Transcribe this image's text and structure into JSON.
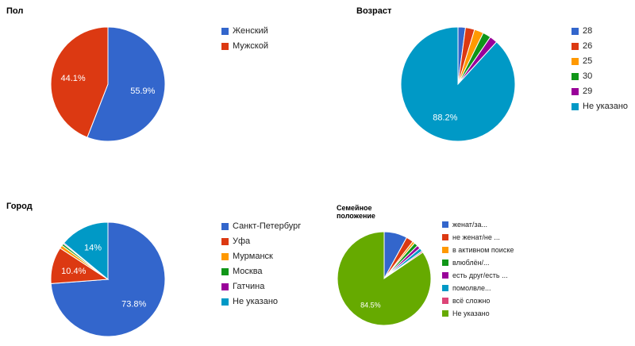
{
  "chart_data": [
    {
      "type": "pie",
      "title": "Пол",
      "series": [
        {
          "name": "Женский",
          "value": 55.9,
          "color": "#3366cc"
        },
        {
          "name": "Мужской",
          "value": 44.1,
          "color": "#dc3912"
        }
      ],
      "slice_labels": [
        "55.9%",
        "44.1%"
      ],
      "legend_position": "right"
    },
    {
      "type": "pie",
      "title": "Возраст",
      "series": [
        {
          "name": "28",
          "value": 2.1,
          "color": "#3366cc"
        },
        {
          "name": "26",
          "value": 2.6,
          "color": "#dc3912"
        },
        {
          "name": "25",
          "value": 2.6,
          "color": "#ff9900"
        },
        {
          "name": "30",
          "value": 2.3,
          "color": "#109618"
        },
        {
          "name": "29",
          "value": 2.2,
          "color": "#990099"
        },
        {
          "name": "Не указано",
          "value": 88.2,
          "color": "#0099c6"
        }
      ],
      "slice_labels": [
        "",
        "",
        "",
        "",
        "",
        "88.2%"
      ],
      "legend_position": "right"
    },
    {
      "type": "pie",
      "title": "Город",
      "series": [
        {
          "name": "Санкт-Петербург",
          "value": 73.8,
          "color": "#3366cc"
        },
        {
          "name": "Уфа",
          "value": 10.4,
          "color": "#dc3912"
        },
        {
          "name": "Мурманск",
          "value": 0.9,
          "color": "#ff9900"
        },
        {
          "name": "Москва",
          "value": 0.6,
          "color": "#109618"
        },
        {
          "name": "Гатчина",
          "value": 0.3,
          "color": "#990099"
        },
        {
          "name": "Не указано",
          "value": 14.0,
          "color": "#0099c6"
        }
      ],
      "slice_labels": [
        "73.8%",
        "10.4%",
        "",
        "",
        "",
        "14%"
      ],
      "legend_position": "right"
    },
    {
      "type": "pie",
      "title": "Семейное положение",
      "series": [
        {
          "name": "женат/за...",
          "value": 8.0,
          "color": "#3366cc"
        },
        {
          "name": "не женат/не ...",
          "value": 2.5,
          "color": "#dc3912"
        },
        {
          "name": "в активном поиске",
          "value": 0.8,
          "color": "#ff9900"
        },
        {
          "name": "влюблён/...",
          "value": 1.3,
          "color": "#109618"
        },
        {
          "name": "есть друг/есть ...",
          "value": 1.2,
          "color": "#990099"
        },
        {
          "name": "помолвле...",
          "value": 1.2,
          "color": "#0099c6"
        },
        {
          "name": "всё сложно",
          "value": 0.5,
          "color": "#dd4477"
        },
        {
          "name": "Не указано",
          "value": 84.5,
          "color": "#66aa00"
        }
      ],
      "slice_labels": [
        "",
        "",
        "",
        "",
        "",
        "",
        "",
        "84.5%"
      ],
      "legend_position": "right"
    }
  ]
}
